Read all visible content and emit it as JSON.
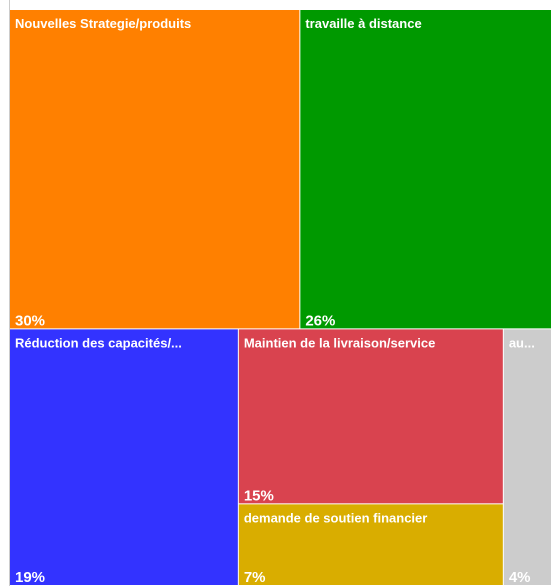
{
  "chart_data": {
    "type": "treemap",
    "categories": [
      "Nouvelles Strategie/produits",
      "travaille à distance",
      "Réduction des capacités/...",
      "Maintien de la livraison/service",
      "demande de soutien financier",
      "au..."
    ],
    "values": [
      30,
      26,
      19,
      15,
      7,
      4
    ],
    "value_labels": [
      "30%",
      "26%",
      "19%",
      "15%",
      "7%",
      "4%"
    ],
    "colors": [
      "#ff8000",
      "#009900",
      "#3333ff",
      "#d9434f",
      "#d9ad00",
      "#cccccc"
    ]
  }
}
